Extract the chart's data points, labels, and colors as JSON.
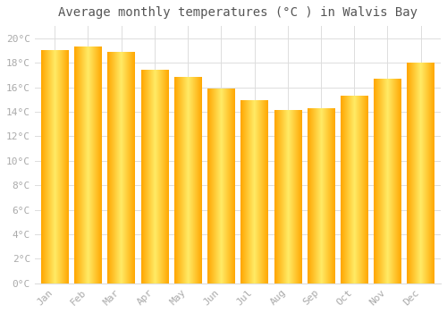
{
  "title": "Average monthly temperatures (°C ) in Walvis Bay",
  "months": [
    "Jan",
    "Feb",
    "Mar",
    "Apr",
    "May",
    "Jun",
    "Jul",
    "Aug",
    "Sep",
    "Oct",
    "Nov",
    "Dec"
  ],
  "temperatures": [
    19.0,
    19.3,
    18.9,
    17.4,
    16.8,
    15.9,
    14.9,
    14.1,
    14.3,
    15.3,
    16.7,
    18.0
  ],
  "bar_color_center": "#FFE066",
  "bar_color_edge": "#FFA500",
  "bar_color_mid": "#FFB800",
  "ylim": [
    0,
    21
  ],
  "yticks": [
    0,
    2,
    4,
    6,
    8,
    10,
    12,
    14,
    16,
    18,
    20
  ],
  "ytick_labels": [
    "0°C",
    "2°C",
    "4°C",
    "6°C",
    "8°C",
    "10°C",
    "12°C",
    "14°C",
    "16°C",
    "18°C",
    "20°C"
  ],
  "background_color": "#FFFFFF",
  "grid_color": "#DDDDDD",
  "title_fontsize": 10,
  "tick_fontsize": 8,
  "tick_color": "#AAAAAA",
  "title_font_color": "#555555",
  "bar_width": 0.82
}
